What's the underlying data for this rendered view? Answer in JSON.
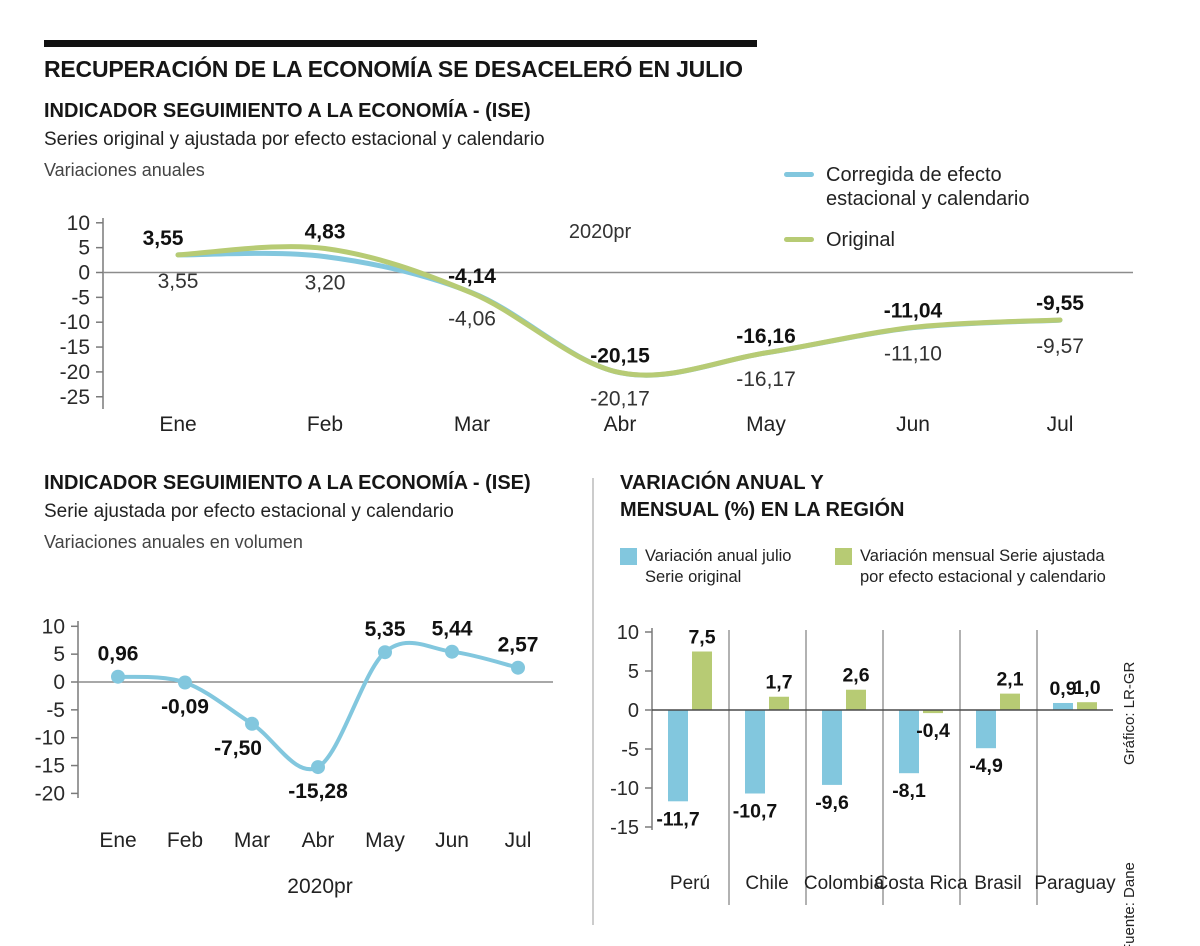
{
  "page": {
    "title": "RECUPERACIÓN DE LA ECONOMÍA SE DESACELERÓ EN JULIO",
    "credits": {
      "graphic": "Gráfico: LR-GR",
      "source": "Fuente: Dane"
    }
  },
  "colors": {
    "blue": "#82c7de",
    "green": "#b7cb74",
    "axis": "#7a7a7a",
    "zero_line": "#8c8c8c",
    "bar_zero_line": "#4a4a4a",
    "separator": "#666666",
    "divider": "#999999",
    "label_bold": "#111111",
    "label_regular": "#333333",
    "tick_text": "#2a2a2a"
  },
  "chart_data": [
    {
      "id": "ise-series",
      "type": "line",
      "title": "INDICADOR SEGUIMIENTO A LA ECONOMÍA - (ISE)",
      "subtitle": "Series original y ajustada por efecto estacional y calendario",
      "unit_label": "Variaciones anuales",
      "annotation": "2020pr",
      "categories": [
        "Ene",
        "Feb",
        "Mar",
        "Abr",
        "May",
        "Jun",
        "Jul"
      ],
      "yticks": [
        10,
        5,
        0,
        -5,
        -10,
        -15,
        -20,
        -25
      ],
      "ylim": [
        -25,
        10
      ],
      "grid": false,
      "legend_position": "top-right",
      "series": [
        {
          "name": "Corregida de efecto estacional y calendario",
          "legend_label_lines": [
            "Corregida de efecto",
            "estacional y calendario"
          ],
          "color": "#82c7de",
          "values": [
            3.55,
            3.2,
            -4.06,
            -20.17,
            -16.17,
            -11.1,
            -9.57
          ],
          "point_labels": [
            "3,55",
            "3,20",
            "-4,06",
            "-20,17",
            "-16,17",
            "-11,10",
            "-9,57"
          ],
          "label_weight": "normal",
          "label_side": "below"
        },
        {
          "name": "Original",
          "legend_label_lines": [
            "Original"
          ],
          "color": "#b7cb74",
          "values": [
            3.55,
            4.83,
            -4.14,
            -20.15,
            -16.16,
            -11.04,
            -9.55
          ],
          "point_labels": [
            "3,55",
            "4,83",
            "-4,14",
            "-20,15",
            "-16,16",
            "-11,04",
            "-9,55"
          ],
          "label_weight": "bold",
          "label_side": "above"
        }
      ]
    },
    {
      "id": "ise-adjusted",
      "type": "line",
      "title": "INDICADOR SEGUIMIENTO A LA ECONOMÍA - (ISE)",
      "subtitle": "Serie ajustada por efecto estacional y calendario",
      "unit_label": "Variaciones anuales en volumen",
      "annotation": "2020pr",
      "categories": [
        "Ene",
        "Feb",
        "Mar",
        "Abr",
        "May",
        "Jun",
        "Jul"
      ],
      "yticks": [
        10,
        5,
        0,
        -5,
        -10,
        -15,
        -20
      ],
      "ylim": [
        -20,
        10
      ],
      "grid": false,
      "series": [
        {
          "name": "Serie ajustada por efecto estacional y calendario",
          "color": "#82c7de",
          "markers": true,
          "values": [
            0.96,
            -0.09,
            -7.5,
            -15.28,
            5.35,
            5.44,
            2.57
          ],
          "point_labels": [
            "0,96",
            "-0,09",
            "-7,50",
            "-15,28",
            "5,35",
            "5,44",
            "2,57"
          ],
          "label_weight": "bold",
          "label_side": "auto"
        }
      ]
    },
    {
      "id": "region-variation",
      "type": "bar",
      "title": "VARIACIÓN ANUAL Y MENSUAL (%) EN LA REGIÓN",
      "title_lines": [
        "VARIACIÓN ANUAL Y",
        "MENSUAL (%) EN LA REGIÓN"
      ],
      "categories": [
        "Perú",
        "Chile",
        "Colombia",
        "Costa Rica",
        "Brasil",
        "Paraguay"
      ],
      "yticks": [
        10,
        5,
        0,
        -5,
        -10,
        -15
      ],
      "ylim": [
        -15,
        10
      ],
      "grid": false,
      "legend_position": "top",
      "series": [
        {
          "name": "Variación anual julio Serie original",
          "legend_label_lines": [
            "Variación anual julio",
            "Serie original"
          ],
          "color": "#82c7de",
          "values": [
            -11.7,
            -10.7,
            -9.6,
            -8.1,
            -4.9,
            0.9
          ],
          "point_labels": [
            "-11,7",
            "-10,7",
            "-9,6",
            "-8,1",
            "-4,9",
            "0,9"
          ]
        },
        {
          "name": "Variación mensual Serie ajustada por efecto estacional y calendario",
          "legend_label_lines": [
            "Variación mensual Serie ajustada",
            "por efecto estacional y calendario"
          ],
          "color": "#b7cb74",
          "values": [
            7.5,
            1.7,
            2.6,
            -0.4,
            2.1,
            1.0
          ],
          "point_labels": [
            "7,5",
            "1,7",
            "2,6",
            "-0,4",
            "2,1",
            "1,0"
          ]
        }
      ]
    }
  ]
}
